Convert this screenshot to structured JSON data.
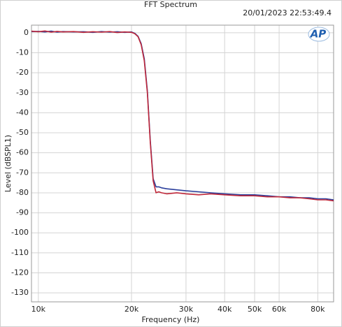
{
  "chart_data": {
    "type": "line",
    "title": "FFT Spectrum",
    "timestamp": "20/01/2023 22:53:49.4",
    "logo": "AP",
    "xlabel": "Frequency (Hz)",
    "ylabel": "Level (dBSPL1)",
    "xscale": "log",
    "grid": true,
    "xlim": [
      9500,
      90000
    ],
    "ylim": [
      -134.5,
      3.8
    ],
    "xticks": [
      {
        "value": 10000,
        "label": "10k"
      },
      {
        "value": 20000,
        "label": "20k"
      },
      {
        "value": 30000,
        "label": "30k"
      },
      {
        "value": 40000,
        "label": "40k"
      },
      {
        "value": 50000,
        "label": "50k"
      },
      {
        "value": 60000,
        "label": "60k"
      },
      {
        "value": 80000,
        "label": "80k"
      }
    ],
    "yticks": [
      0,
      -10,
      -20,
      -30,
      -40,
      -50,
      -60,
      -70,
      -80,
      -90,
      -100,
      -110,
      -120,
      -130
    ],
    "x": [
      9500,
      10000,
      10500,
      11000,
      11500,
      12000,
      13000,
      14000,
      15000,
      16000,
      17000,
      18000,
      19000,
      20000,
      20500,
      21000,
      21500,
      22000,
      22500,
      23000,
      23500,
      24000,
      24500,
      25000,
      26000,
      28000,
      30000,
      33000,
      36000,
      40000,
      45000,
      50000,
      55000,
      60000,
      65000,
      70000,
      75000,
      80000,
      85000,
      90000
    ],
    "series": [
      {
        "color": "#2b3f9c",
        "values": [
          0.6,
          0.7,
          0.4,
          0.8,
          0.3,
          0.6,
          0.4,
          0.5,
          0.2,
          0.6,
          0.3,
          0.5,
          0.2,
          0.4,
          -0.3,
          -1.8,
          -5.5,
          -13,
          -29,
          -54,
          -73,
          -77,
          -77,
          -77.5,
          -78,
          -78.5,
          -79,
          -79.5,
          -80,
          -80.5,
          -81,
          -81,
          -81.5,
          -82,
          -82,
          -82.5,
          -82.5,
          -83,
          -83,
          -83.5
        ]
      },
      {
        "color": "#c0283a",
        "values": [
          0.8,
          0.5,
          0.9,
          0.3,
          0.7,
          0.4,
          0.6,
          0.2,
          0.5,
          0.3,
          0.6,
          0.1,
          0.4,
          0.2,
          -0.5,
          -2,
          -6,
          -14,
          -30,
          -55,
          -74,
          -80,
          -79.5,
          -80,
          -80.5,
          -80,
          -80.5,
          -81,
          -80.5,
          -81,
          -81.5,
          -81.5,
          -82,
          -82,
          -82.5,
          -82.5,
          -83,
          -83.5,
          -83.5,
          -84
        ]
      }
    ]
  }
}
